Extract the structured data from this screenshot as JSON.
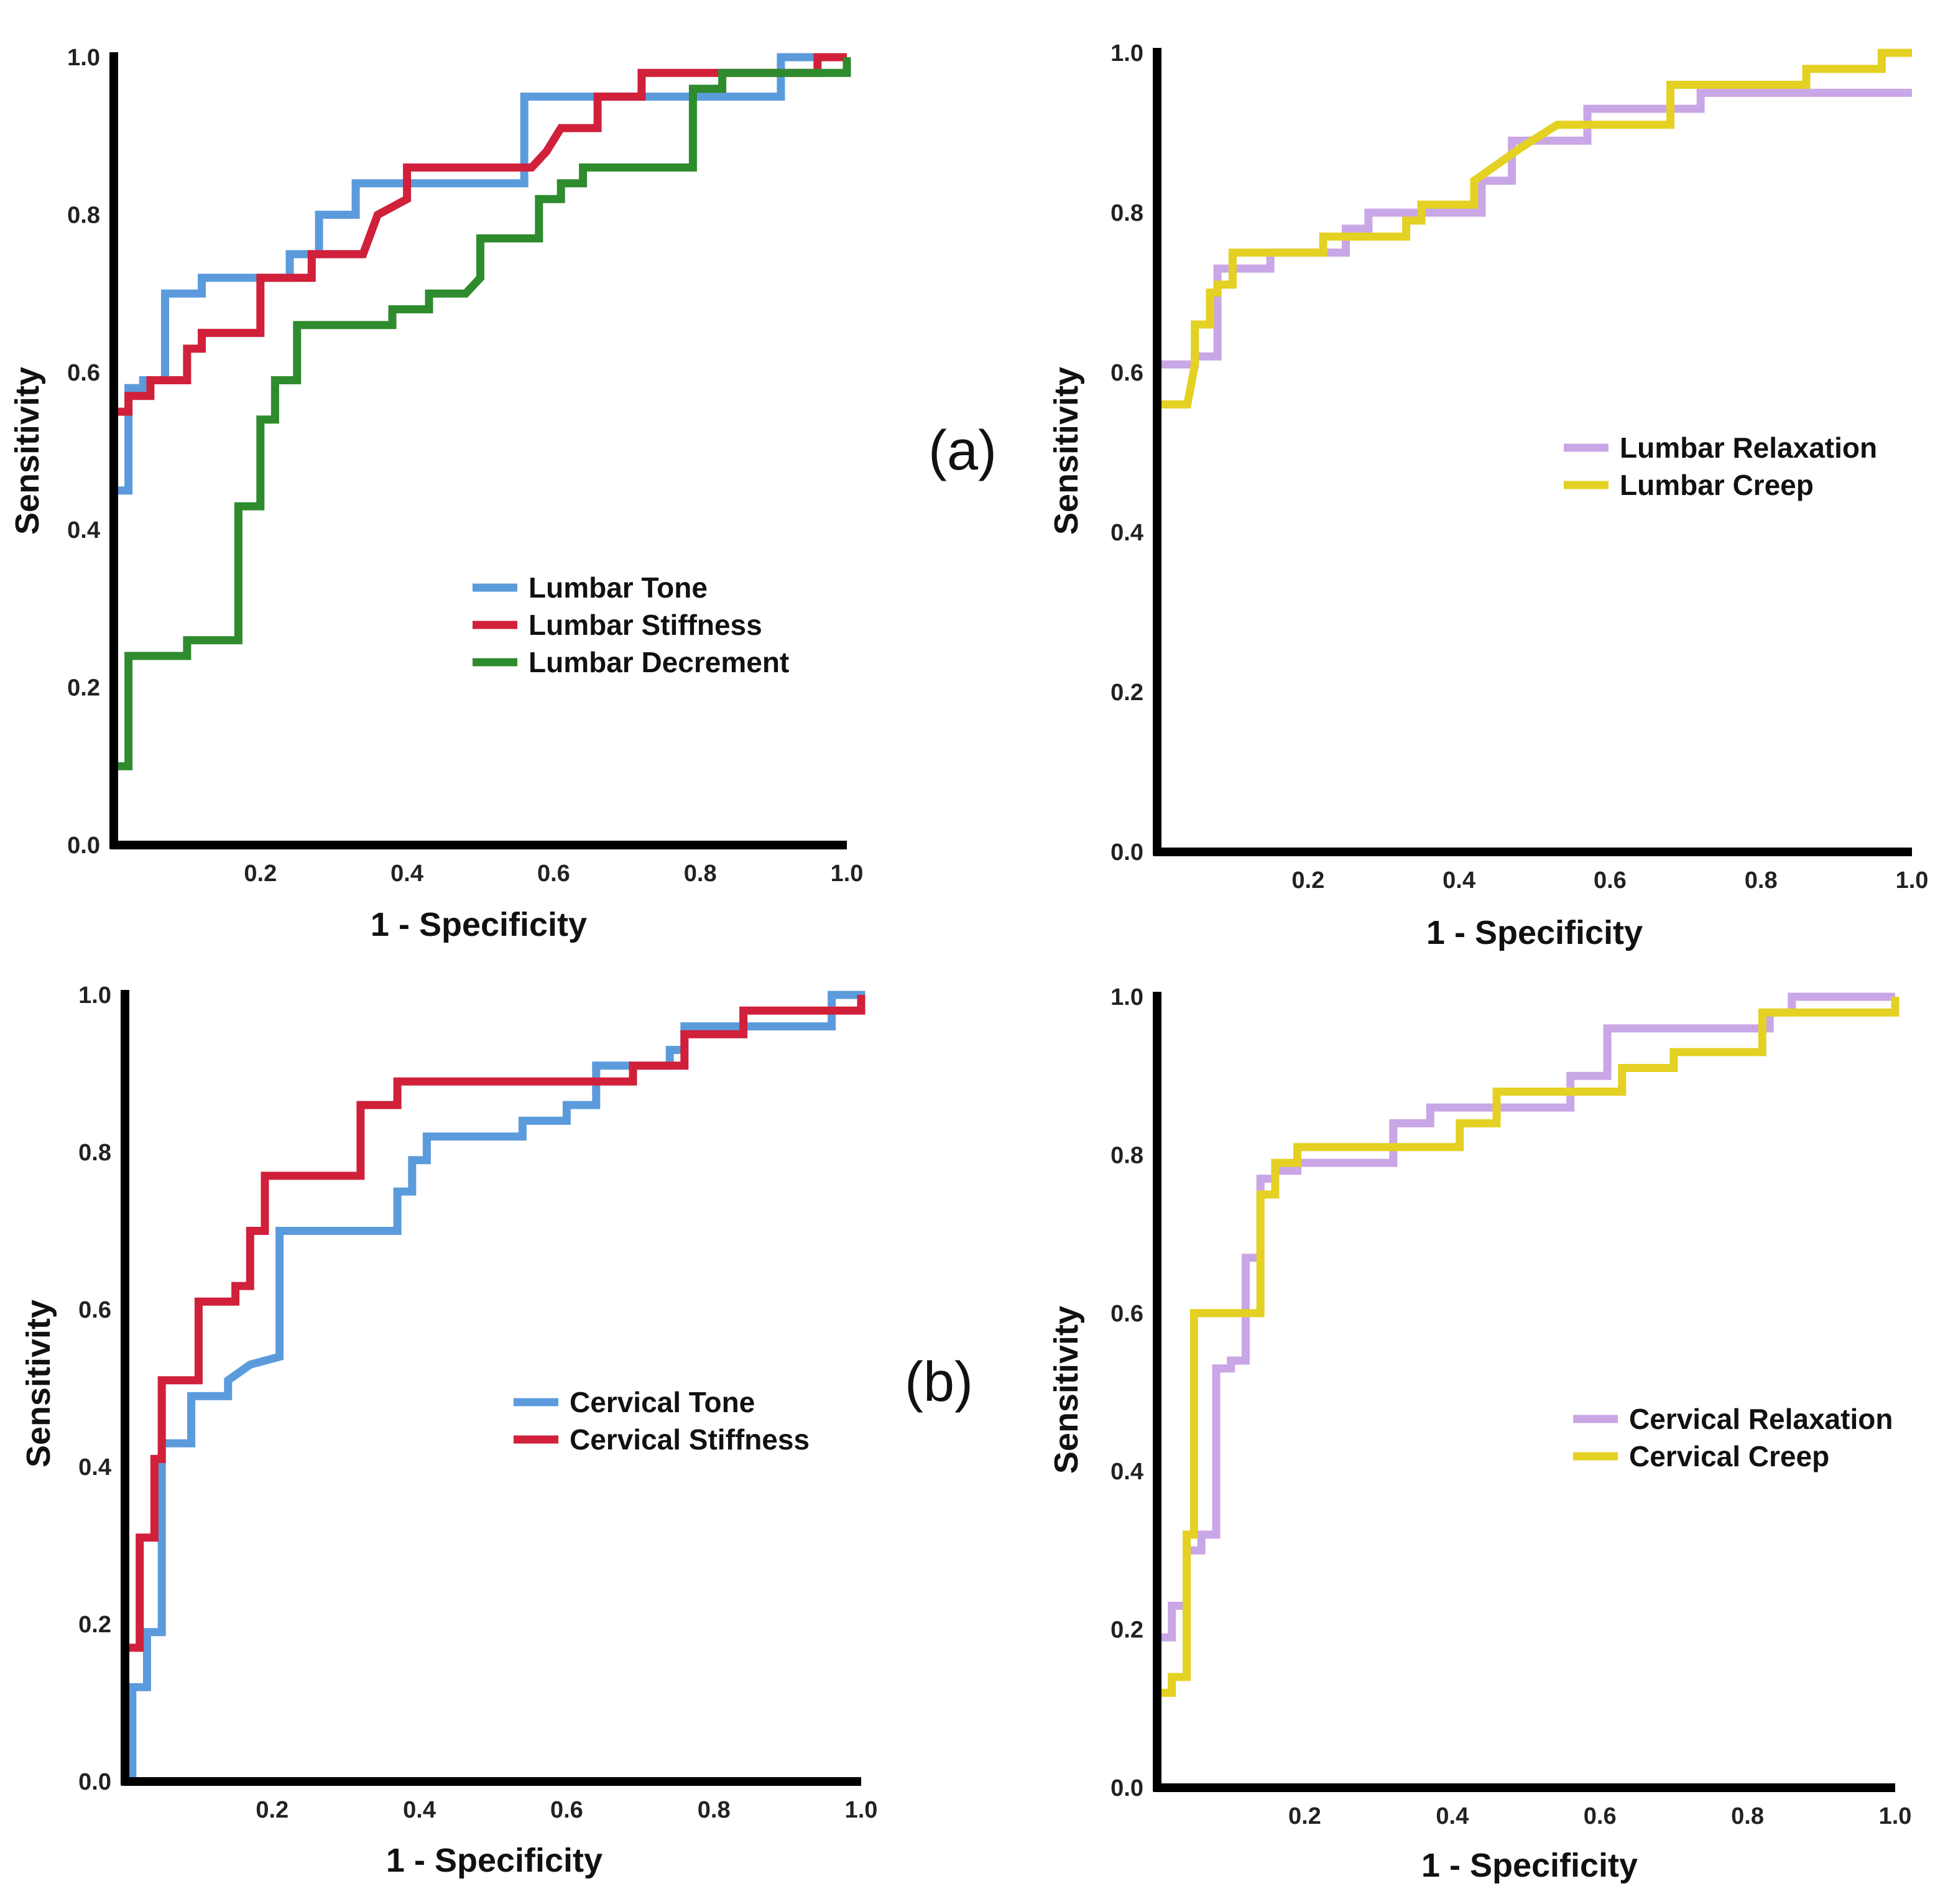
{
  "panel_labels": {
    "a": "(a)",
    "b": "(b)"
  },
  "chart_data": [
    {
      "type": "line",
      "id": "lumbar-1",
      "xlabel": "1 - Specificity",
      "ylabel": "Sensitivity",
      "xlim": [
        0,
        1
      ],
      "ylim": [
        0,
        1
      ],
      "xticks": [
        "0.2",
        "0.4",
        "0.6",
        "0.8",
        "1.0"
      ],
      "yticks": [
        "0.0",
        "0.2",
        "0.4",
        "0.6",
        "0.8",
        "1.0"
      ],
      "legend": "center-right",
      "series": [
        {
          "name": "Lumbar Tone",
          "color": "#5b9bdc",
          "x": [
            0,
            0,
            0.02,
            0.02,
            0.04,
            0.04,
            0.07,
            0.07,
            0.12,
            0.12,
            0.24,
            0.24,
            0.28,
            0.28,
            0.33,
            0.33,
            0.56,
            0.56,
            0.91,
            0.91,
            1.0
          ],
          "y": [
            0,
            0.45,
            0.45,
            0.58,
            0.58,
            0.59,
            0.59,
            0.7,
            0.7,
            0.72,
            0.72,
            0.75,
            0.75,
            0.8,
            0.8,
            0.84,
            0.84,
            0.95,
            0.95,
            1.0,
            1.0
          ]
        },
        {
          "name": "Lumbar Stiffness",
          "color": "#d0203a",
          "x": [
            0,
            0,
            0.02,
            0.02,
            0.05,
            0.05,
            0.1,
            0.1,
            0.12,
            0.12,
            0.2,
            0.2,
            0.27,
            0.27,
            0.34,
            0.36,
            0.4,
            0.4,
            0.57,
            0.59,
            0.61,
            0.66,
            0.66,
            0.72,
            0.72,
            0.96,
            0.96,
            1.0,
            1.0
          ],
          "y": [
            0,
            0.55,
            0.55,
            0.57,
            0.57,
            0.59,
            0.59,
            0.63,
            0.63,
            0.65,
            0.65,
            0.72,
            0.72,
            0.75,
            0.75,
            0.8,
            0.82,
            0.86,
            0.86,
            0.88,
            0.91,
            0.91,
            0.95,
            0.95,
            0.98,
            0.98,
            1.0,
            1.0,
            1.0
          ]
        },
        {
          "name": "Lumbar Decrement",
          "color": "#2e8b2e",
          "x": [
            0,
            0,
            0.02,
            0.02,
            0.1,
            0.1,
            0.17,
            0.17,
            0.2,
            0.2,
            0.22,
            0.22,
            0.25,
            0.25,
            0.38,
            0.38,
            0.43,
            0.43,
            0.48,
            0.5,
            0.5,
            0.58,
            0.58,
            0.61,
            0.61,
            0.64,
            0.64,
            0.67,
            0.67,
            0.79,
            0.79,
            0.83,
            0.83,
            1.0,
            1.0
          ],
          "y": [
            0,
            0.1,
            0.1,
            0.24,
            0.24,
            0.26,
            0.26,
            0.43,
            0.43,
            0.54,
            0.54,
            0.59,
            0.59,
            0.66,
            0.66,
            0.68,
            0.68,
            0.7,
            0.7,
            0.72,
            0.77,
            0.77,
            0.82,
            0.82,
            0.84,
            0.84,
            0.86,
            0.86,
            0.86,
            0.86,
            0.96,
            0.96,
            0.98,
            0.98,
            1.0
          ]
        }
      ]
    },
    {
      "type": "line",
      "id": "lumbar-2",
      "xlabel": "1 - Specificity",
      "ylabel": "Sensitivity",
      "xlim": [
        0,
        1
      ],
      "ylim": [
        0,
        1
      ],
      "xticks": [
        "0.2",
        "0.4",
        "0.6",
        "0.8",
        "1.0"
      ],
      "yticks": [
        "0.0",
        "0.2",
        "0.4",
        "0.6",
        "0.8",
        "1.0"
      ],
      "legend": "center-right",
      "series": [
        {
          "name": "Lumbar Relaxation",
          "color": "#c9a6e6",
          "x": [
            0,
            0,
            0.05,
            0.05,
            0.08,
            0.08,
            0.15,
            0.15,
            0.25,
            0.25,
            0.28,
            0.28,
            0.43,
            0.43,
            0.47,
            0.47,
            0.57,
            0.57,
            0.63,
            0.63,
            0.72,
            0.72,
            1.0
          ],
          "y": [
            0,
            0.61,
            0.61,
            0.62,
            0.62,
            0.73,
            0.73,
            0.75,
            0.75,
            0.78,
            0.78,
            0.8,
            0.8,
            0.84,
            0.84,
            0.89,
            0.89,
            0.93,
            0.93,
            0.93,
            0.93,
            0.95,
            0.95
          ]
        },
        {
          "name": "Lumbar Creep",
          "color": "#e4d123",
          "x": [
            0,
            0,
            0.02,
            0.04,
            0.05,
            0.05,
            0.07,
            0.07,
            0.08,
            0.08,
            0.1,
            0.1,
            0.22,
            0.22,
            0.33,
            0.33,
            0.35,
            0.35,
            0.42,
            0.42,
            0.48,
            0.48,
            0.53,
            0.53,
            0.68,
            0.68,
            0.86,
            0.86,
            0.96,
            0.96,
            1.0
          ],
          "y": [
            0,
            0.56,
            0.56,
            0.56,
            0.61,
            0.66,
            0.66,
            0.7,
            0.7,
            0.71,
            0.71,
            0.75,
            0.75,
            0.77,
            0.77,
            0.79,
            0.79,
            0.81,
            0.81,
            0.84,
            0.88,
            0.88,
            0.91,
            0.91,
            0.91,
            0.96,
            0.96,
            0.98,
            0.98,
            1.0,
            1.0
          ]
        }
      ]
    },
    {
      "type": "line",
      "id": "cervical-1",
      "xlabel": "1 - Specificity",
      "ylabel": "Sensitivity",
      "xlim": [
        0,
        1
      ],
      "ylim": [
        0,
        1
      ],
      "xticks": [
        "0.2",
        "0.4",
        "0.6",
        "0.8",
        "1.0"
      ],
      "yticks": [
        "0.0",
        "0.2",
        "0.4",
        "0.6",
        "0.8",
        "1.0"
      ],
      "legend": "center-right",
      "series": [
        {
          "name": "Cervical Tone",
          "color": "#5b9bdc",
          "x": [
            0,
            0.01,
            0.01,
            0.03,
            0.03,
            0.05,
            0.05,
            0.09,
            0.09,
            0.14,
            0.14,
            0.17,
            0.21,
            0.21,
            0.37,
            0.37,
            0.39,
            0.39,
            0.41,
            0.41,
            0.54,
            0.54,
            0.6,
            0.6,
            0.64,
            0.64,
            0.74,
            0.74,
            0.76,
            0.76,
            0.96,
            0.96,
            1.0,
            1.0
          ],
          "y": [
            0,
            0,
            0.12,
            0.12,
            0.19,
            0.19,
            0.43,
            0.43,
            0.49,
            0.49,
            0.51,
            0.53,
            0.54,
            0.7,
            0.7,
            0.75,
            0.75,
            0.79,
            0.79,
            0.82,
            0.82,
            0.84,
            0.84,
            0.86,
            0.86,
            0.91,
            0.91,
            0.93,
            0.93,
            0.96,
            0.96,
            1.0,
            1.0,
            0.98
          ]
        },
        {
          "name": "Cervical Stiffness",
          "color": "#d0203a",
          "x": [
            0,
            0,
            0.02,
            0.02,
            0.04,
            0.04,
            0.05,
            0.05,
            0.1,
            0.1,
            0.15,
            0.15,
            0.17,
            0.17,
            0.19,
            0.19,
            0.32,
            0.32,
            0.37,
            0.37,
            0.69,
            0.69,
            0.76,
            0.76,
            0.84,
            0.84,
            1.0,
            1.0
          ],
          "y": [
            0,
            0.17,
            0.17,
            0.31,
            0.31,
            0.41,
            0.41,
            0.51,
            0.51,
            0.61,
            0.61,
            0.63,
            0.63,
            0.7,
            0.7,
            0.77,
            0.77,
            0.86,
            0.86,
            0.89,
            0.89,
            0.91,
            0.91,
            0.95,
            0.95,
            0.98,
            0.98,
            1.0
          ]
        }
      ]
    },
    {
      "type": "line",
      "id": "cervical-2",
      "xlabel": "1 - Specificity",
      "ylabel": "Sensitivity",
      "xlim": [
        0,
        1
      ],
      "ylim": [
        0,
        1
      ],
      "xticks": [
        "0.2",
        "0.4",
        "0.6",
        "0.8",
        "1.0"
      ],
      "yticks": [
        "0.0",
        "0.2",
        "0.4",
        "0.6",
        "0.8",
        "1.0"
      ],
      "legend": "center-right",
      "series": [
        {
          "name": "Cervical Relaxation",
          "color": "#c9a6e6",
          "x": [
            0,
            0,
            0.02,
            0.02,
            0.04,
            0.04,
            0.06,
            0.06,
            0.08,
            0.08,
            0.1,
            0.1,
            0.12,
            0.12,
            0.14,
            0.14,
            0.16,
            0.16,
            0.19,
            0.19,
            0.32,
            0.32,
            0.37,
            0.37,
            0.56,
            0.56,
            0.61,
            0.61,
            0.83,
            0.83,
            0.86,
            0.86,
            1.0
          ],
          "y": [
            0,
            0.19,
            0.19,
            0.23,
            0.23,
            0.3,
            0.3,
            0.32,
            0.32,
            0.53,
            0.53,
            0.54,
            0.54,
            0.67,
            0.67,
            0.77,
            0.77,
            0.78,
            0.78,
            0.79,
            0.79,
            0.84,
            0.84,
            0.86,
            0.86,
            0.9,
            0.9,
            0.96,
            0.96,
            0.98,
            0.98,
            1.0,
            1.0
          ]
        },
        {
          "name": "Cervical Creep",
          "color": "#e4d123",
          "x": [
            0,
            0,
            0.02,
            0.02,
            0.04,
            0.04,
            0.05,
            0.05,
            0.07,
            0.07,
            0.14,
            0.14,
            0.16,
            0.16,
            0.19,
            0.19,
            0.21,
            0.21,
            0.41,
            0.41,
            0.46,
            0.46,
            0.63,
            0.63,
            0.7,
            0.7,
            0.82,
            0.82,
            1.0,
            1.0
          ],
          "y": [
            0,
            0.12,
            0.12,
            0.14,
            0.14,
            0.32,
            0.32,
            0.6,
            0.6,
            0.6,
            0.6,
            0.75,
            0.75,
            0.79,
            0.79,
            0.81,
            0.81,
            0.81,
            0.81,
            0.84,
            0.84,
            0.88,
            0.88,
            0.91,
            0.91,
            0.93,
            0.93,
            0.98,
            0.98,
            1.0
          ]
        }
      ]
    }
  ]
}
